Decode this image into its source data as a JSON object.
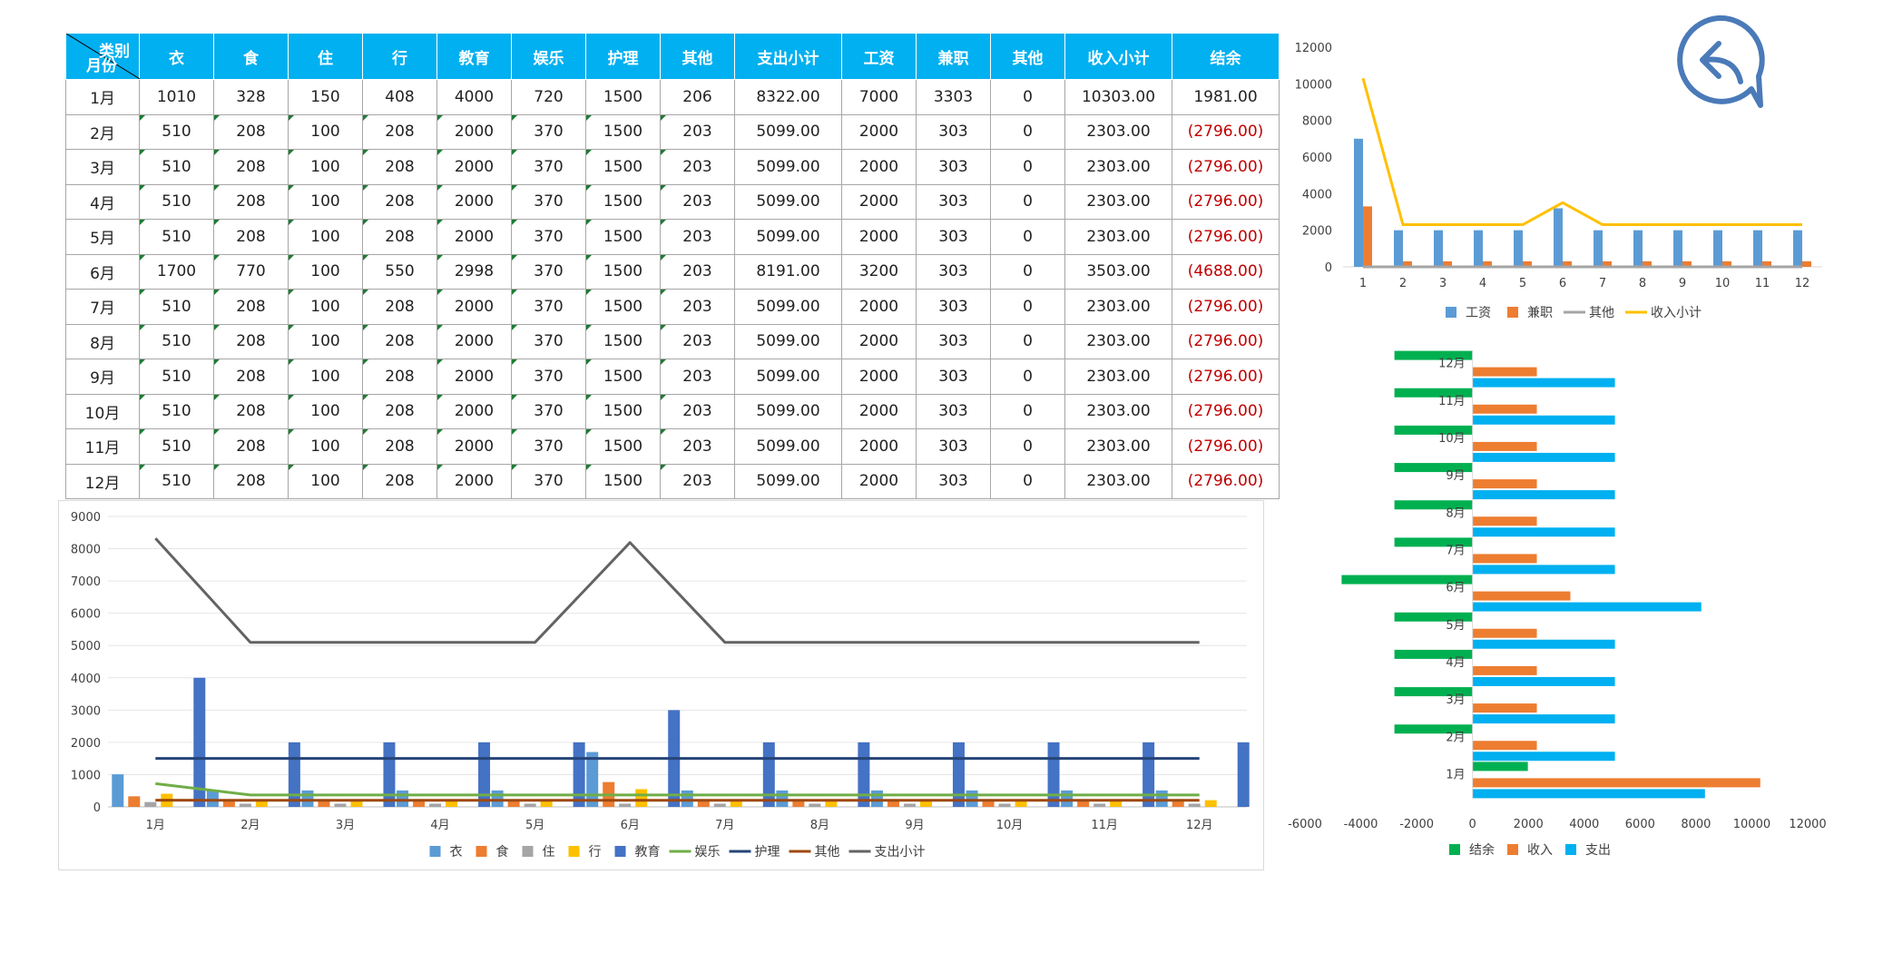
{
  "table": {
    "corner": {
      "top": "类别",
      "bottom": "月份"
    },
    "headers": [
      "衣",
      "食",
      "住",
      "行",
      "教育",
      "娱乐",
      "护理",
      "其他",
      "支出小计",
      "工资",
      "兼职",
      "其他",
      "收入小计",
      "结余"
    ],
    "rows": [
      {
        "month": "1月",
        "cells": [
          "1010",
          "328",
          "150",
          "408",
          "4000",
          "720",
          "1500",
          "206",
          "8322.00",
          "7000",
          "3303",
          "0",
          "10303.00",
          "1981.00"
        ]
      },
      {
        "month": "2月",
        "cells": [
          "510",
          "208",
          "100",
          "208",
          "2000",
          "370",
          "1500",
          "203",
          "5099.00",
          "2000",
          "303",
          "0",
          "2303.00",
          "(2796.00)"
        ]
      },
      {
        "month": "3月",
        "cells": [
          "510",
          "208",
          "100",
          "208",
          "2000",
          "370",
          "1500",
          "203",
          "5099.00",
          "2000",
          "303",
          "0",
          "2303.00",
          "(2796.00)"
        ]
      },
      {
        "month": "4月",
        "cells": [
          "510",
          "208",
          "100",
          "208",
          "2000",
          "370",
          "1500",
          "203",
          "5099.00",
          "2000",
          "303",
          "0",
          "2303.00",
          "(2796.00)"
        ]
      },
      {
        "month": "5月",
        "cells": [
          "510",
          "208",
          "100",
          "208",
          "2000",
          "370",
          "1500",
          "203",
          "5099.00",
          "2000",
          "303",
          "0",
          "2303.00",
          "(2796.00)"
        ]
      },
      {
        "month": "6月",
        "cells": [
          "1700",
          "770",
          "100",
          "550",
          "2998",
          "370",
          "1500",
          "203",
          "8191.00",
          "3200",
          "303",
          "0",
          "3503.00",
          "(4688.00)"
        ]
      },
      {
        "month": "7月",
        "cells": [
          "510",
          "208",
          "100",
          "208",
          "2000",
          "370",
          "1500",
          "203",
          "5099.00",
          "2000",
          "303",
          "0",
          "2303.00",
          "(2796.00)"
        ]
      },
      {
        "month": "8月",
        "cells": [
          "510",
          "208",
          "100",
          "208",
          "2000",
          "370",
          "1500",
          "203",
          "5099.00",
          "2000",
          "303",
          "0",
          "2303.00",
          "(2796.00)"
        ]
      },
      {
        "month": "9月",
        "cells": [
          "510",
          "208",
          "100",
          "208",
          "2000",
          "370",
          "1500",
          "203",
          "5099.00",
          "2000",
          "303",
          "0",
          "2303.00",
          "(2796.00)"
        ]
      },
      {
        "month": "10月",
        "cells": [
          "510",
          "208",
          "100",
          "208",
          "2000",
          "370",
          "1500",
          "203",
          "5099.00",
          "2000",
          "303",
          "0",
          "2303.00",
          "(2796.00)"
        ]
      },
      {
        "month": "11月",
        "cells": [
          "510",
          "208",
          "100",
          "208",
          "2000",
          "370",
          "1500",
          "203",
          "5099.00",
          "2000",
          "303",
          "0",
          "2303.00",
          "(2796.00)"
        ]
      },
      {
        "month": "12月",
        "cells": [
          "510",
          "208",
          "100",
          "208",
          "2000",
          "370",
          "1500",
          "203",
          "5099.00",
          "2000",
          "303",
          "0",
          "2303.00",
          "(2796.00)"
        ]
      }
    ]
  },
  "icons": {
    "back": "back-arrow-speech-bubble-icon"
  },
  "colors": {
    "header_bg": "#00b0f0",
    "negative": "#c00000"
  },
  "chart_data": [
    {
      "id": "income",
      "type": "bar",
      "categories": [
        "1",
        "2",
        "3",
        "4",
        "5",
        "6",
        "7",
        "8",
        "9",
        "10",
        "11",
        "12"
      ],
      "series": [
        {
          "name": "工资",
          "kind": "bar",
          "color": "#5b9bd5",
          "values": [
            7000,
            2000,
            2000,
            2000,
            2000,
            3200,
            2000,
            2000,
            2000,
            2000,
            2000,
            2000
          ]
        },
        {
          "name": "兼职",
          "kind": "bar",
          "color": "#ed7d31",
          "values": [
            3303,
            303,
            303,
            303,
            303,
            303,
            303,
            303,
            303,
            303,
            303,
            303
          ]
        },
        {
          "name": "其他",
          "kind": "line",
          "color": "#a5a5a5",
          "values": [
            0,
            0,
            0,
            0,
            0,
            0,
            0,
            0,
            0,
            0,
            0,
            0
          ]
        },
        {
          "name": "收入小计",
          "kind": "line",
          "color": "#ffc000",
          "values": [
            10303,
            2303,
            2303,
            2303,
            2303,
            3503,
            2303,
            2303,
            2303,
            2303,
            2303,
            2303
          ]
        }
      ],
      "ylim": [
        0,
        12000
      ],
      "yticks": [
        "0",
        "2000",
        "4000",
        "6000",
        "8000",
        "10000",
        "12000"
      ],
      "legend": "bottom",
      "grid": false
    },
    {
      "id": "expense",
      "type": "bar",
      "categories": [
        "1月",
        "2月",
        "3月",
        "4月",
        "5月",
        "6月",
        "7月",
        "8月",
        "9月",
        "10月",
        "11月",
        "12月"
      ],
      "series": [
        {
          "name": "衣",
          "kind": "bar",
          "color": "#5b9bd5",
          "values": [
            1010,
            510,
            510,
            510,
            510,
            1700,
            510,
            510,
            510,
            510,
            510,
            510
          ]
        },
        {
          "name": "食",
          "kind": "bar",
          "color": "#ed7d31",
          "values": [
            328,
            208,
            208,
            208,
            208,
            770,
            208,
            208,
            208,
            208,
            208,
            208
          ]
        },
        {
          "name": "住",
          "kind": "bar",
          "color": "#a5a5a5",
          "values": [
            150,
            100,
            100,
            100,
            100,
            100,
            100,
            100,
            100,
            100,
            100,
            100
          ]
        },
        {
          "name": "行",
          "kind": "bar",
          "color": "#ffc000",
          "values": [
            408,
            208,
            208,
            208,
            208,
            550,
            208,
            208,
            208,
            208,
            208,
            208
          ]
        },
        {
          "name": "教育",
          "kind": "bar",
          "color": "#4472c4",
          "values": [
            4000,
            2000,
            2000,
            2000,
            2000,
            2998,
            2000,
            2000,
            2000,
            2000,
            2000,
            2000
          ]
        },
        {
          "name": "娱乐",
          "kind": "line",
          "color": "#70ad47",
          "values": [
            720,
            370,
            370,
            370,
            370,
            370,
            370,
            370,
            370,
            370,
            370,
            370
          ]
        },
        {
          "name": "护理",
          "kind": "line",
          "color": "#264478",
          "values": [
            1500,
            1500,
            1500,
            1500,
            1500,
            1500,
            1500,
            1500,
            1500,
            1500,
            1500,
            1500
          ]
        },
        {
          "name": "其他",
          "kind": "line",
          "color": "#9e480e",
          "values": [
            206,
            203,
            203,
            203,
            203,
            203,
            203,
            203,
            203,
            203,
            203,
            203
          ]
        },
        {
          "name": "支出小计",
          "kind": "line",
          "color": "#636363",
          "values": [
            8322,
            5099,
            5099,
            5099,
            5099,
            8191,
            5099,
            5099,
            5099,
            5099,
            5099,
            5099
          ]
        }
      ],
      "ylim": [
        0,
        9000
      ],
      "yticks": [
        "0",
        "1000",
        "2000",
        "3000",
        "4000",
        "5000",
        "6000",
        "7000",
        "8000",
        "9000"
      ],
      "legend": "bottom",
      "grid": true
    },
    {
      "id": "balance",
      "type": "bar",
      "orientation": "horizontal",
      "categories": [
        "1月",
        "2月",
        "3月",
        "4月",
        "5月",
        "6月",
        "7月",
        "8月",
        "9月",
        "10月",
        "11月",
        "12月"
      ],
      "series": [
        {
          "name": "结余",
          "color": "#00b050",
          "values": [
            1981,
            -2796,
            -2796,
            -2796,
            -2796,
            -4688,
            -2796,
            -2796,
            -2796,
            -2796,
            -2796,
            -2796
          ]
        },
        {
          "name": "收入",
          "color": "#ed7d31",
          "values": [
            10303,
            2303,
            2303,
            2303,
            2303,
            3503,
            2303,
            2303,
            2303,
            2303,
            2303,
            2303
          ]
        },
        {
          "name": "支出",
          "color": "#00b0f0",
          "values": [
            8322,
            5099,
            5099,
            5099,
            5099,
            8191,
            5099,
            5099,
            5099,
            5099,
            5099,
            5099
          ]
        }
      ],
      "xlim": [
        -6000,
        12000
      ],
      "xticks": [
        "-6000",
        "-4000",
        "-2000",
        "0",
        "2000",
        "4000",
        "6000",
        "8000",
        "10000",
        "12000"
      ],
      "legend": "bottom",
      "grid": false
    }
  ]
}
